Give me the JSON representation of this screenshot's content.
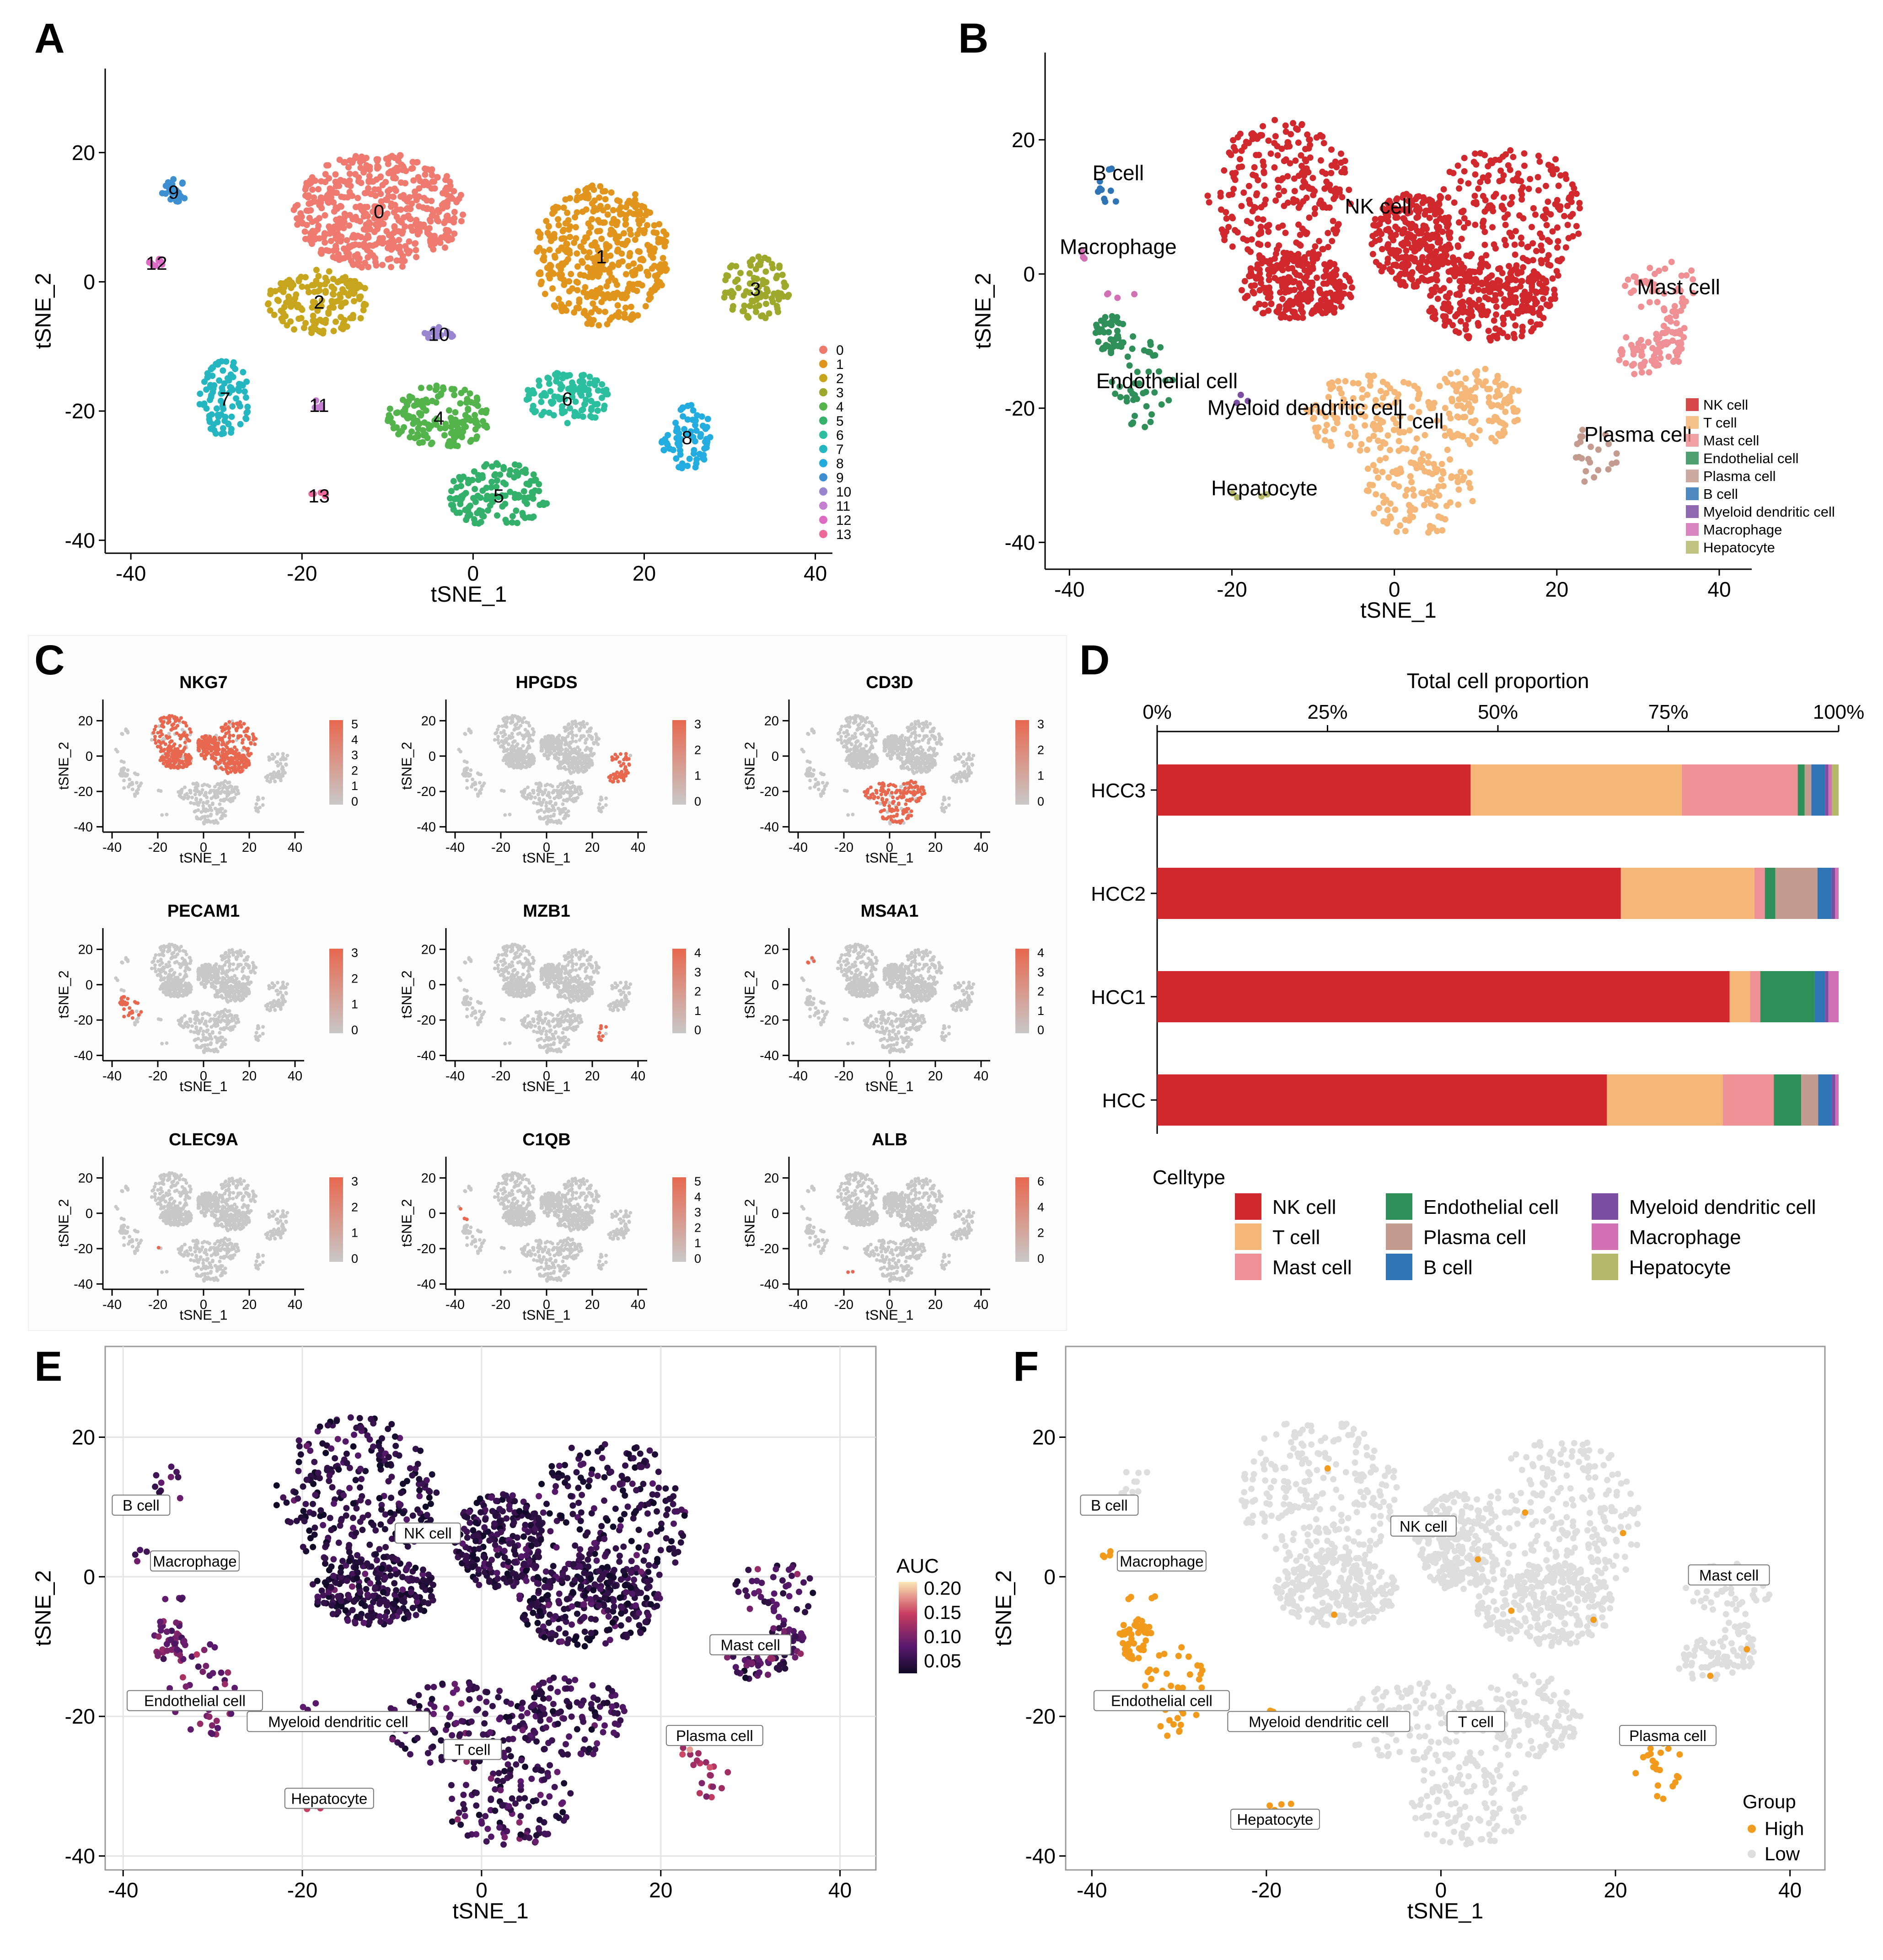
{
  "panel_letters": {
    "A": "A",
    "B": "B",
    "C": "C",
    "D": "D",
    "E": "E",
    "F": "F"
  },
  "palette": {
    "cell": {
      "NK cell": "#d0282c",
      "T cell": "#f4b777",
      "Mast cell": "#ef9194",
      "Endothelial cell": "#2f8f58",
      "Plasma cell": "#c49b8f",
      "B cell": "#2f74b5",
      "Myeloid dendritic cell": "#7b4ea3",
      "Macrophage": "#d270b6",
      "Hepatocyte": "#b5b86a"
    },
    "cluster": [
      "#ef7a70",
      "#e2951c",
      "#c7a51c",
      "#9ea82a",
      "#52b44b",
      "#33b16a",
      "#2bbfa0",
      "#25b7c1",
      "#22ace0",
      "#3d8fd2",
      "#9a85d0",
      "#c47fd2",
      "#dd6bc4",
      "#ec679a"
    ],
    "gene_high": "#e8684f",
    "gene_low": "#c8c8c8",
    "group_high": "#f29a1b",
    "group_low": "#dedede"
  },
  "chart_data": [
    {
      "id": "A",
      "type": "scatter",
      "xlabel": "tSNE_1",
      "ylabel": "tSNE_2",
      "xlim": [
        -40,
        40
      ],
      "ylim": [
        -40,
        30
      ],
      "xticks": [
        "-40",
        "-20",
        "0",
        "20",
        "40"
      ],
      "yticks": [
        "20",
        "0",
        "-20",
        "-40"
      ],
      "legend": [
        "0",
        "1",
        "2",
        "3",
        "4",
        "5",
        "6",
        "7",
        "8",
        "9",
        "10",
        "11",
        "12",
        "13"
      ],
      "legend_position": "bottom-right",
      "clusters": [
        {
          "label": "0",
          "x": -11,
          "y": 11
        },
        {
          "label": "1",
          "x": 15,
          "y": 4
        },
        {
          "label": "2",
          "x": -18,
          "y": -3
        },
        {
          "label": "3",
          "x": 33,
          "y": -1
        },
        {
          "label": "4",
          "x": -4,
          "y": -21
        },
        {
          "label": "5",
          "x": 3,
          "y": -33
        },
        {
          "label": "6",
          "x": 11,
          "y": -18
        },
        {
          "label": "7",
          "x": -29,
          "y": -18
        },
        {
          "label": "8",
          "x": 25,
          "y": -24
        },
        {
          "label": "9",
          "x": -35,
          "y": 14
        },
        {
          "label": "10",
          "x": -4,
          "y": -8
        },
        {
          "label": "11",
          "x": -18,
          "y": -19
        },
        {
          "label": "12",
          "x": -37,
          "y": 3
        },
        {
          "label": "13",
          "x": -18,
          "y": -33
        }
      ]
    },
    {
      "id": "B",
      "type": "scatter",
      "xlabel": "tSNE_1",
      "ylabel": "tSNE_2",
      "xlim": [
        -40,
        40
      ],
      "ylim": [
        -40,
        30
      ],
      "xticks": [
        "-40",
        "-20",
        "0",
        "20",
        "40"
      ],
      "yticks": [
        "20",
        "0",
        "-20",
        "-40"
      ],
      "legend": [
        "NK cell",
        "T cell",
        "Mast cell",
        "Endothelial cell",
        "Plasma cell",
        "B cell",
        "Myeloid dendritic cell",
        "Macrophage",
        "Hepatocyte"
      ],
      "legend_position": "bottom-right",
      "labels": [
        {
          "text": "B cell",
          "x": -34,
          "y": 14
        },
        {
          "text": "NK cell",
          "x": -2,
          "y": 9
        },
        {
          "text": "Macrophage",
          "x": -34,
          "y": 3
        },
        {
          "text": "Mast cell",
          "x": 35,
          "y": -3
        },
        {
          "text": "Endothelial cell",
          "x": -28,
          "y": -17
        },
        {
          "text": "Myeloid dendritic cell",
          "x": -11,
          "y": -21
        },
        {
          "text": "T cell",
          "x": 3,
          "y": -23
        },
        {
          "text": "Plasma cell",
          "x": 30,
          "y": -25
        },
        {
          "text": "Hepatocyte",
          "x": -16,
          "y": -33
        }
      ]
    },
    {
      "id": "C",
      "type": "scatter",
      "xlabel": "tSNE_1",
      "ylabel": "tSNE_2",
      "xticks": [
        "-40",
        "-20",
        "0",
        "20",
        "40"
      ],
      "yticks": [
        "20",
        "0",
        "-20",
        "-40"
      ],
      "panels": [
        {
          "gene": "NKG7",
          "legend": [
            "5",
            "4",
            "3",
            "2",
            "1",
            "0"
          ],
          "region": "nk"
        },
        {
          "gene": "HPGDS",
          "legend": [
            "3",
            "2",
            "1",
            "0"
          ],
          "region": "mast"
        },
        {
          "gene": "CD3D",
          "legend": [
            "3",
            "2",
            "1",
            "0"
          ],
          "region": "t"
        },
        {
          "gene": "PECAM1",
          "legend": [
            "3",
            "2",
            "1",
            "0"
          ],
          "region": "endo"
        },
        {
          "gene": "MZB1",
          "legend": [
            "4",
            "3",
            "2",
            "1",
            "0"
          ],
          "region": "plasma"
        },
        {
          "gene": "MS4A1",
          "legend": [
            "4",
            "3",
            "2",
            "1",
            "0"
          ],
          "region": "b"
        },
        {
          "gene": "CLEC9A",
          "legend": [
            "3",
            "2",
            "1",
            "0"
          ],
          "region": "mdc"
        },
        {
          "gene": "C1QB",
          "legend": [
            "5",
            "4",
            "3",
            "2",
            "1",
            "0"
          ],
          "region": "mac"
        },
        {
          "gene": "ALB",
          "legend": [
            "6",
            "4",
            "2",
            "0"
          ],
          "region": "hep"
        }
      ]
    },
    {
      "id": "D",
      "type": "bar",
      "orientation": "horizontal",
      "stacked": true,
      "title": "Total cell proportion",
      "xticks": [
        "0%",
        "25%",
        "50%",
        "75%",
        "100%"
      ],
      "categories": [
        "HCC3",
        "HCC2",
        "HCC1",
        "HCC"
      ],
      "legend_title": "Celltype",
      "legend_position": "bottom",
      "series": [
        {
          "name": "NK cell",
          "values": [
            46,
            66,
            84,
            66
          ]
        },
        {
          "name": "T cell",
          "values": [
            31,
            19,
            3,
            17
          ]
        },
        {
          "name": "Mast cell",
          "values": [
            17,
            1.5,
            1.5,
            7.5
          ]
        },
        {
          "name": "Endothelial cell",
          "values": [
            1,
            1.5,
            8,
            4
          ]
        },
        {
          "name": "Plasma cell",
          "values": [
            1,
            6,
            0,
            2.5
          ]
        },
        {
          "name": "B cell",
          "values": [
            2,
            2,
            1.5,
            2
          ]
        },
        {
          "name": "Myeloid dendritic cell",
          "values": [
            0.5,
            0.5,
            0.5,
            0.5
          ]
        },
        {
          "name": "Macrophage",
          "values": [
            0.5,
            0.5,
            1.5,
            0.5
          ]
        },
        {
          "name": "Hepatocyte",
          "values": [
            1,
            0,
            0,
            0
          ]
        }
      ]
    },
    {
      "id": "E",
      "type": "scatter",
      "xlabel": "tSNE_1",
      "ylabel": "tSNE_2",
      "xlim": [
        -40,
        40
      ],
      "ylim": [
        -40,
        30
      ],
      "xticks": [
        "-40",
        "-20",
        "0",
        "20",
        "40"
      ],
      "yticks": [
        "20",
        "0",
        "-20",
        "-40"
      ],
      "colorbar_title": "AUC",
      "colorbar_ticks": [
        "0.20",
        "0.15",
        "0.10",
        "0.05"
      ],
      "legend_position": "right",
      "labels": [
        {
          "text": "B cell",
          "x": -38,
          "y": 10
        },
        {
          "text": "NK cell",
          "x": -6,
          "y": 6
        },
        {
          "text": "Macrophage",
          "x": -32,
          "y": 2
        },
        {
          "text": "Mast cell",
          "x": 30,
          "y": -10
        },
        {
          "text": "Endothelial cell",
          "x": -32,
          "y": -18
        },
        {
          "text": "Myeloid dendritic cell",
          "x": -16,
          "y": -21
        },
        {
          "text": "T cell",
          "x": -1,
          "y": -25
        },
        {
          "text": "Plasma cell",
          "x": 26,
          "y": -23
        },
        {
          "text": "Hepatocyte",
          "x": -17,
          "y": -32
        }
      ]
    },
    {
      "id": "F",
      "type": "scatter",
      "xlabel": "tSNE_1",
      "ylabel": "tSNE_2",
      "xlim": [
        -40,
        40
      ],
      "ylim": [
        -40,
        30
      ],
      "xticks": [
        "-40",
        "-20",
        "0",
        "20",
        "40"
      ],
      "yticks": [
        "20",
        "0",
        "-20",
        "-40"
      ],
      "legend_title": "Group",
      "legend": [
        "High",
        "Low"
      ],
      "legend_position": "bottom-right",
      "labels": [
        {
          "text": "B cell",
          "x": -38,
          "y": 10
        },
        {
          "text": "NK cell",
          "x": -2,
          "y": 7
        },
        {
          "text": "Macrophage",
          "x": -32,
          "y": 2
        },
        {
          "text": "Mast cell",
          "x": 33,
          "y": 0
        },
        {
          "text": "Endothelial cell",
          "x": -32,
          "y": -18
        },
        {
          "text": "Myeloid dendritic cell",
          "x": -14,
          "y": -21
        },
        {
          "text": "T cell",
          "x": 4,
          "y": -21
        },
        {
          "text": "Plasma cell",
          "x": 26,
          "y": -23
        },
        {
          "text": "Hepatocyte",
          "x": -19,
          "y": -35
        }
      ]
    }
  ]
}
